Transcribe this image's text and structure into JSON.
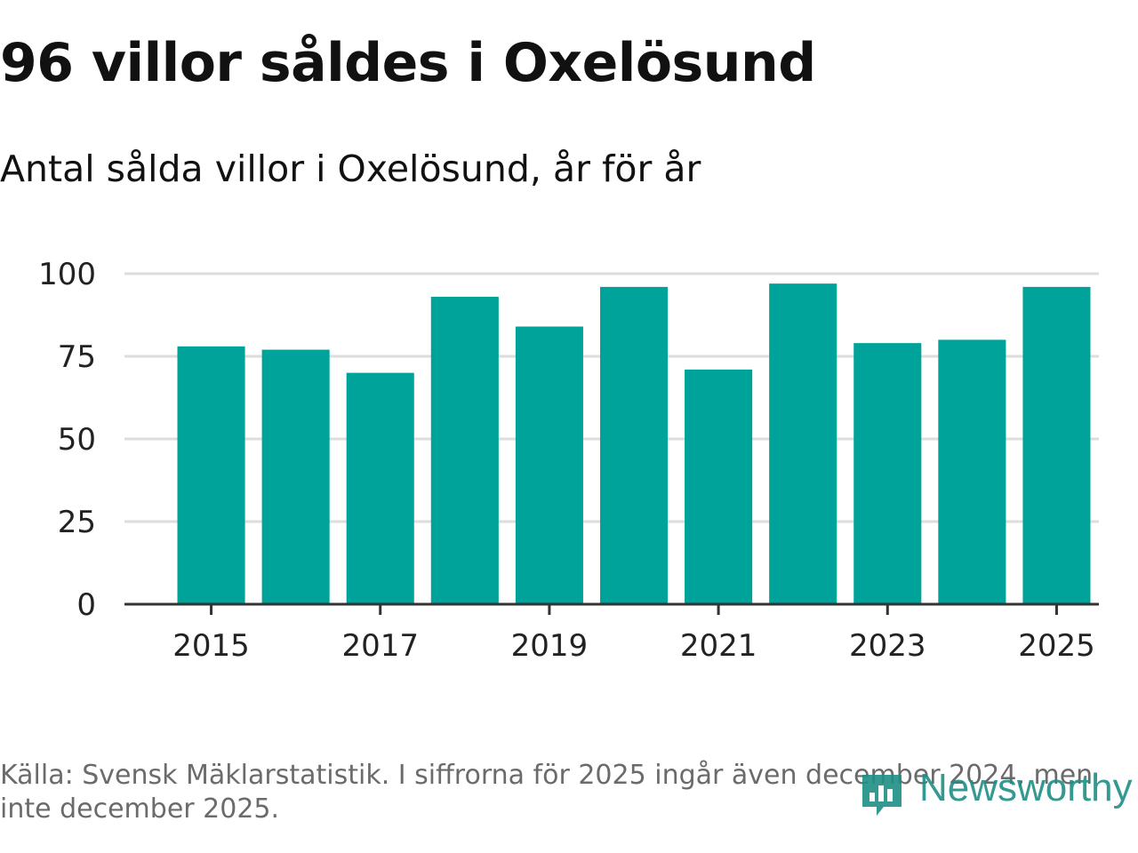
{
  "title": "96 villor såldes i Oxelösund",
  "subtitle": "Antal sålda villor i Oxelösund, år för år",
  "source": "Källa: Svensk Mäklarstatistik. I siffrorna för 2025 ingår även december 2024, men inte december 2025.",
  "logo": {
    "text": "Newsworthy",
    "icon": "newsworthy-logo-icon"
  },
  "colors": {
    "bar": "#00A39A",
    "grid": "#dddddd",
    "axis": "#333333",
    "tick_text": "#222222"
  },
  "chart_data": {
    "type": "bar",
    "title": "96 villor såldes i Oxelösund",
    "subtitle": "Antal sålda villor i Oxelösund, år för år",
    "xlabel": "",
    "ylabel": "",
    "categories": [
      2015,
      2016,
      2017,
      2018,
      2019,
      2020,
      2021,
      2022,
      2023,
      2024,
      2025
    ],
    "values": [
      78,
      77,
      70,
      93,
      84,
      96,
      71,
      97,
      79,
      80,
      96
    ],
    "ylim": [
      0,
      100
    ],
    "yticks": [
      0,
      25,
      50,
      75,
      100
    ],
    "xticks": [
      "2015",
      "2017",
      "2019",
      "2021",
      "2023",
      "2025"
    ],
    "grid": true
  }
}
